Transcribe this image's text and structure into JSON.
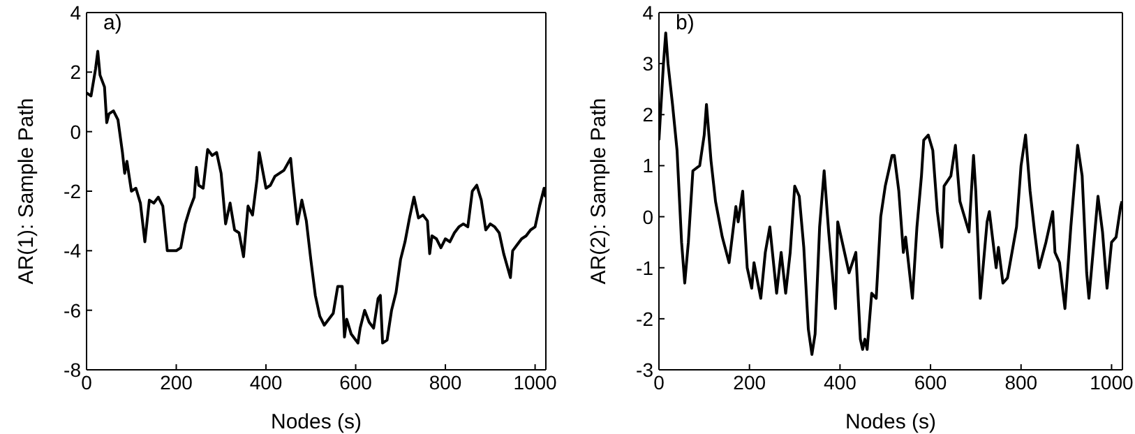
{
  "chart_data": [
    {
      "type": "line",
      "xlabel": "Nodes (s)",
      "ylabel": "AR(1): Sample Path",
      "annotations": [
        "a)"
      ],
      "xlim": [
        0,
        1024
      ],
      "xticks": [
        0,
        200,
        400,
        600,
        800,
        1000
      ],
      "ylim": [
        -8,
        4
      ],
      "yticks": [
        -8,
        -6,
        -4,
        -2,
        0,
        2,
        4
      ],
      "marker": "none",
      "line_style": "solid",
      "series": [
        {
          "color": "#000000",
          "x": [
            0,
            10,
            20,
            25,
            30,
            40,
            45,
            50,
            60,
            70,
            80,
            85,
            90,
            100,
            110,
            120,
            130,
            140,
            150,
            160,
            170,
            180,
            190,
            200,
            210,
            220,
            230,
            240,
            245,
            250,
            260,
            270,
            280,
            290,
            300,
            310,
            320,
            330,
            340,
            350,
            360,
            370,
            380,
            385,
            390,
            400,
            410,
            420,
            430,
            440,
            455,
            460,
            470,
            480,
            490,
            500,
            510,
            520,
            530,
            540,
            550,
            560,
            570,
            575,
            580,
            590,
            605,
            610,
            620,
            630,
            640,
            650,
            655,
            660,
            670,
            680,
            690,
            700,
            710,
            720,
            730,
            740,
            750,
            760,
            765,
            770,
            780,
            790,
            800,
            810,
            820,
            830,
            840,
            850,
            860,
            870,
            880,
            890,
            900,
            910,
            920,
            930,
            945,
            950,
            960,
            970,
            980,
            990,
            1000,
            1010,
            1020,
            1023
          ],
          "values": [
            1.3,
            1.2,
            2.1,
            2.7,
            1.9,
            1.5,
            0.3,
            0.6,
            0.7,
            0.4,
            -0.7,
            -1.4,
            -1.0,
            -2.0,
            -1.9,
            -2.4,
            -3.7,
            -2.3,
            -2.4,
            -2.2,
            -2.5,
            -4.0,
            -4.0,
            -4.0,
            -3.9,
            -3.1,
            -2.6,
            -2.2,
            -1.2,
            -1.8,
            -1.9,
            -0.6,
            -0.8,
            -0.7,
            -1.4,
            -3.1,
            -2.4,
            -3.3,
            -3.4,
            -4.2,
            -2.5,
            -2.8,
            -1.6,
            -0.7,
            -1.1,
            -1.9,
            -1.8,
            -1.5,
            -1.4,
            -1.3,
            -0.9,
            -1.7,
            -3.1,
            -2.3,
            -3.0,
            -4.3,
            -5.5,
            -6.2,
            -6.5,
            -6.3,
            -6.1,
            -5.2,
            -5.2,
            -6.9,
            -6.3,
            -6.8,
            -7.1,
            -6.6,
            -6.0,
            -6.4,
            -6.6,
            -5.6,
            -5.5,
            -7.1,
            -7.0,
            -6.0,
            -5.4,
            -4.3,
            -3.7,
            -2.9,
            -2.2,
            -2.9,
            -2.8,
            -3.0,
            -4.1,
            -3.5,
            -3.6,
            -3.9,
            -3.6,
            -3.7,
            -3.4,
            -3.2,
            -3.1,
            -3.2,
            -2.0,
            -1.8,
            -2.3,
            -3.3,
            -3.1,
            -3.2,
            -3.4,
            -4.1,
            -4.9,
            -4.0,
            -3.8,
            -3.6,
            -3.5,
            -3.3,
            -3.2,
            -2.5,
            -1.9,
            -2.2
          ]
        }
      ]
    },
    {
      "type": "line",
      "xlabel": "Nodes (s)",
      "ylabel": "AR(2): Sample Path",
      "annotations": [
        "b)"
      ],
      "xlim": [
        0,
        1024
      ],
      "xticks": [
        0,
        200,
        400,
        600,
        800,
        1000
      ],
      "ylim": [
        -3,
        4
      ],
      "yticks": [
        -3,
        -2,
        -1,
        0,
        1,
        2,
        3,
        4
      ],
      "marker": "none",
      "line_style": "solid",
      "series": [
        {
          "color": "#000000",
          "x": [
            0,
            10,
            15,
            20,
            30,
            40,
            50,
            57,
            65,
            75,
            90,
            100,
            105,
            115,
            125,
            140,
            155,
            170,
            175,
            185,
            195,
            205,
            210,
            225,
            235,
            245,
            260,
            270,
            280,
            290,
            300,
            310,
            320,
            330,
            338,
            345,
            355,
            365,
            375,
            390,
            395,
            405,
            420,
            435,
            445,
            450,
            455,
            460,
            470,
            480,
            490,
            500,
            515,
            520,
            530,
            540,
            545,
            560,
            570,
            580,
            585,
            595,
            605,
            615,
            625,
            630,
            645,
            655,
            665,
            685,
            695,
            700,
            710,
            725,
            730,
            745,
            750,
            760,
            770,
            790,
            800,
            810,
            820,
            830,
            840,
            855,
            870,
            875,
            885,
            897,
            910,
            925,
            935,
            945,
            950,
            960,
            970,
            980,
            990,
            1000,
            1010,
            1020,
            1023
          ],
          "values": [
            1.5,
            3.0,
            3.6,
            3.0,
            2.2,
            1.3,
            -0.5,
            -1.3,
            -0.5,
            0.9,
            1.0,
            1.6,
            2.2,
            1.1,
            0.3,
            -0.4,
            -0.9,
            0.2,
            -0.1,
            0.5,
            -1.0,
            -1.4,
            -0.9,
            -1.6,
            -0.7,
            -0.2,
            -1.5,
            -0.7,
            -1.5,
            -0.7,
            0.6,
            0.4,
            -0.6,
            -2.2,
            -2.7,
            -2.3,
            -0.2,
            0.9,
            -0.3,
            -1.8,
            -0.1,
            -0.5,
            -1.1,
            -0.7,
            -2.4,
            -2.6,
            -2.4,
            -2.6,
            -1.5,
            -1.6,
            0.0,
            0.6,
            1.2,
            1.2,
            0.5,
            -0.7,
            -0.4,
            -1.6,
            -0.2,
            0.8,
            1.5,
            1.6,
            1.3,
            0.1,
            -0.6,
            0.6,
            0.8,
            1.4,
            0.3,
            -0.3,
            1.2,
            0.5,
            -1.6,
            -0.1,
            0.1,
            -1.0,
            -0.6,
            -1.3,
            -1.2,
            -0.2,
            1.0,
            1.6,
            0.5,
            -0.3,
            -1.0,
            -0.5,
            0.1,
            -0.7,
            -0.9,
            -1.8,
            -0.2,
            1.4,
            0.8,
            -1.1,
            -1.6,
            -0.6,
            0.4,
            -0.3,
            -1.4,
            -0.5,
            -0.4,
            0.2,
            0.3
          ]
        }
      ]
    }
  ]
}
